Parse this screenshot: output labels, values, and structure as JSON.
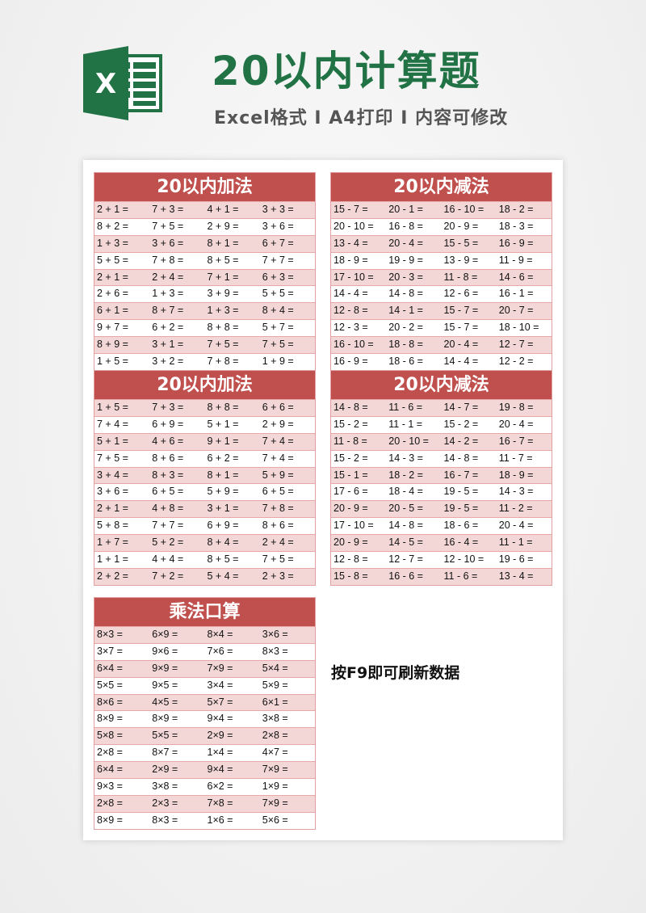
{
  "header": {
    "logo_letter": "X",
    "title": "20以内计算题",
    "subtitle": "Excel格式 I A4打印 I 内容可修改"
  },
  "colors": {
    "brand_green": "#217346",
    "table_header": "#c0504d",
    "row_alt": "#f2d7d6"
  },
  "tables": [
    {
      "id": "add-1",
      "title": "20以内加法",
      "rows": [
        [
          "2 + 1 =",
          "7 + 3 =",
          "4 + 1 =",
          "3 + 3 ="
        ],
        [
          "8 + 2 =",
          "7 + 5 =",
          "2 + 9 =",
          "3 + 6 ="
        ],
        [
          "1 + 3 =",
          "3 + 6 =",
          "8 + 1 =",
          "6 + 7 ="
        ],
        [
          "5 + 5 =",
          "7 + 8 =",
          "8 + 5 =",
          "7 + 7 ="
        ],
        [
          "2 + 1 =",
          "2 + 4 =",
          "7 + 1 =",
          "6 + 3 ="
        ],
        [
          "2 + 6 =",
          "1 + 3 =",
          "3 + 9 =",
          "5 + 5 ="
        ],
        [
          "6 + 1 =",
          "8 + 7 =",
          "1 + 3 =",
          "8 + 4 ="
        ],
        [
          "9 + 7 =",
          "6 + 2 =",
          "8 + 8 =",
          "5 + 7 ="
        ],
        [
          "8 + 9 =",
          "3 + 1 =",
          "7 + 5 =",
          "7 + 5 ="
        ],
        [
          "1 + 5 =",
          "3 + 2 =",
          "7 + 8 =",
          "1 + 9 ="
        ]
      ]
    },
    {
      "id": "sub-1",
      "title": "20以内减法",
      "rows": [
        [
          "15 - 7 =",
          "20 - 1 =",
          "16 - 10 =",
          "18 - 2 ="
        ],
        [
          "20 - 10 =",
          "16 - 8 =",
          "20 - 9 =",
          "18 - 3 ="
        ],
        [
          "13 - 4 =",
          "20 - 4 =",
          "15 - 5 =",
          "16 - 9 ="
        ],
        [
          "18 - 9 =",
          "19 - 9 =",
          "13 - 9 =",
          "11 - 9 ="
        ],
        [
          "17 - 10 =",
          "20 - 3 =",
          "11 - 8 =",
          "14 - 6 ="
        ],
        [
          "14 - 4 =",
          "14 - 8 =",
          "12 - 6 =",
          "16 - 1 ="
        ],
        [
          "12 - 8 =",
          "14 - 1 =",
          "15 - 7 =",
          "20 - 7 ="
        ],
        [
          "12 - 3 =",
          "20 - 2 =",
          "15 - 7 =",
          "18 - 10 ="
        ],
        [
          "16 - 10 =",
          "18 - 8 =",
          "20 - 4 =",
          "12 - 7 ="
        ],
        [
          "16 - 9 =",
          "18 - 6 =",
          "14 - 4 =",
          "12 - 2 ="
        ]
      ]
    },
    {
      "id": "add-2",
      "title": "20以内加法",
      "rows": [
        [
          "1 + 5 =",
          "7 + 3 =",
          "8 + 8 =",
          "6 + 6 ="
        ],
        [
          "7 + 4 =",
          "6 + 9 =",
          "5 + 1 =",
          "2 + 9 ="
        ],
        [
          "5 + 1 =",
          "4 + 6 =",
          "9 + 1 =",
          "7 + 4 ="
        ],
        [
          "7 + 5 =",
          "8 + 6 =",
          "6 + 2 =",
          "7 + 4 ="
        ],
        [
          "3 + 4 =",
          "8 + 3 =",
          "8 + 1 =",
          "5 + 9 ="
        ],
        [
          "3 + 6 =",
          "6 + 5 =",
          "5 + 9 =",
          "6 + 5 ="
        ],
        [
          "2 + 1 =",
          "4 + 8 =",
          "3 + 1 =",
          "7 + 8 ="
        ],
        [
          "5 + 8 =",
          "7 + 7 =",
          "6 + 9 =",
          "8 + 6 ="
        ],
        [
          "1 + 7 =",
          "5 + 2 =",
          "8 + 4 =",
          "2 + 4 ="
        ],
        [
          "1 + 1 =",
          "4 + 4 =",
          "8 + 5 =",
          "7 + 5 ="
        ],
        [
          "2 + 2 =",
          "7 + 2 =",
          "5 + 4 =",
          "2 + 3 ="
        ]
      ]
    },
    {
      "id": "sub-2",
      "title": "20以内减法",
      "rows": [
        [
          "14 - 8 =",
          "11 - 6 =",
          "14 - 7 =",
          "19 - 8 ="
        ],
        [
          "15 - 2 =",
          "11 - 1 =",
          "15 - 2 =",
          "20 - 4 ="
        ],
        [
          "11 - 8 =",
          "20 - 10 =",
          "14 - 2 =",
          "16 - 7 ="
        ],
        [
          "15 - 2 =",
          "14 - 3 =",
          "14 - 8 =",
          "11 - 7 ="
        ],
        [
          "15 - 1 =",
          "18 - 2 =",
          "16 - 7 =",
          "18 - 9 ="
        ],
        [
          "17 - 6 =",
          "18 - 4 =",
          "19 - 5 =",
          "14 - 3 ="
        ],
        [
          "20 - 9 =",
          "20 - 5 =",
          "19 - 5 =",
          "11 - 2 ="
        ],
        [
          "17 - 10 =",
          "14 - 8 =",
          "18 - 6 =",
          "20 - 4 ="
        ],
        [
          "20 - 9 =",
          "14 - 5 =",
          "16 - 4 =",
          "11 - 1 ="
        ],
        [
          "12 - 8 =",
          "12 - 7 =",
          "12 - 10 =",
          "19 - 6 ="
        ],
        [
          "15 - 8 =",
          "16 - 6 =",
          "11 - 6 =",
          "13 - 4 ="
        ]
      ]
    },
    {
      "id": "mul",
      "title": "乘法口算",
      "rows": [
        [
          "8×3 =",
          "6×9 =",
          "8×4 =",
          "3×6 ="
        ],
        [
          "3×7 =",
          "9×6 =",
          "7×6 =",
          "8×3 ="
        ],
        [
          "6×4 =",
          "9×9 =",
          "7×9 =",
          "5×4 ="
        ],
        [
          "5×5 =",
          "9×5 =",
          "3×4 =",
          "5×9 ="
        ],
        [
          "8×6 =",
          "4×5 =",
          "5×7 =",
          "6×1 ="
        ],
        [
          "8×9 =",
          "8×9 =",
          "9×4 =",
          "3×8 ="
        ],
        [
          "5×8 =",
          "5×5 =",
          "2×9 =",
          "2×8 ="
        ],
        [
          "2×8 =",
          "8×7 =",
          "1×4 =",
          "4×7 ="
        ],
        [
          "6×4 =",
          "2×9 =",
          "9×4 =",
          "7×9 ="
        ],
        [
          "9×3 =",
          "3×8 =",
          "6×2 =",
          "1×9 ="
        ],
        [
          "2×8 =",
          "2×3 =",
          "7×8 =",
          "7×9 ="
        ],
        [
          "8×9 =",
          "8×3 =",
          "1×6 =",
          "5×6 ="
        ]
      ]
    }
  ],
  "note": "按F9即可刷新数据"
}
